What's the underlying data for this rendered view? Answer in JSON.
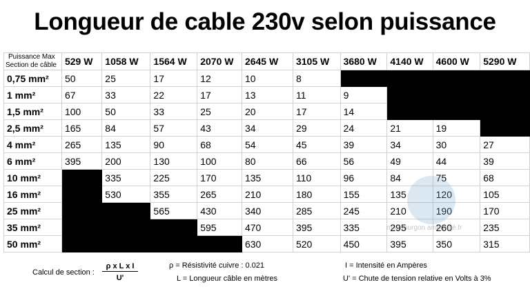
{
  "title": "Longueur de cable 230v selon puissance",
  "table": {
    "corner": [
      "Puissance Max",
      "Section de câble"
    ],
    "columns": [
      "529 W",
      "1058 W",
      "1564 W",
      "2070 W",
      "2645 W",
      "3105 W",
      "3680 W",
      "4140 W",
      "4600 W",
      "5290 W"
    ],
    "rows": [
      {
        "label": "0,75 mm²",
        "cells": [
          50,
          25,
          17,
          12,
          10,
          8,
          null,
          null,
          null,
          null
        ]
      },
      {
        "label": "1 mm²",
        "cells": [
          67,
          33,
          22,
          17,
          13,
          11,
          9,
          null,
          null,
          null
        ]
      },
      {
        "label": "1,5 mm²",
        "cells": [
          100,
          50,
          33,
          25,
          20,
          17,
          14,
          null,
          null,
          null
        ]
      },
      {
        "label": "2,5 mm²",
        "cells": [
          165,
          84,
          57,
          43,
          34,
          29,
          24,
          21,
          19,
          null
        ]
      },
      {
        "label": "4 mm²",
        "cells": [
          265,
          135,
          90,
          68,
          54,
          45,
          39,
          34,
          30,
          27
        ]
      },
      {
        "label": "6 mm²",
        "cells": [
          395,
          200,
          130,
          100,
          80,
          66,
          56,
          49,
          44,
          39
        ]
      },
      {
        "label": "10 mm²",
        "cells": [
          null,
          335,
          225,
          170,
          135,
          110,
          96,
          84,
          75,
          68
        ]
      },
      {
        "label": "16 mm²",
        "cells": [
          null,
          530,
          355,
          265,
          210,
          180,
          155,
          135,
          120,
          105
        ]
      },
      {
        "label": "25 mm²",
        "cells": [
          null,
          null,
          565,
          430,
          340,
          285,
          245,
          210,
          190,
          170
        ]
      },
      {
        "label": "35 mm²",
        "cells": [
          null,
          null,
          null,
          595,
          470,
          395,
          335,
          295,
          260,
          235
        ]
      },
      {
        "label": "50 mm²",
        "cells": [
          null,
          null,
          null,
          null,
          630,
          520,
          450,
          395,
          350,
          315
        ]
      }
    ]
  },
  "watermark": "mon fourgon aménagé.fr",
  "footer": {
    "formula_label": "Calcul de section :",
    "numerator": "ρ x L x I",
    "denominator": "U'",
    "notes": [
      "ρ = Résistivité cuivre : 0.021",
      "L = Longueur câble en mètres",
      "I = Intensité en Ampères",
      "U' = Chute de tension relative en Volts à 3%"
    ]
  }
}
